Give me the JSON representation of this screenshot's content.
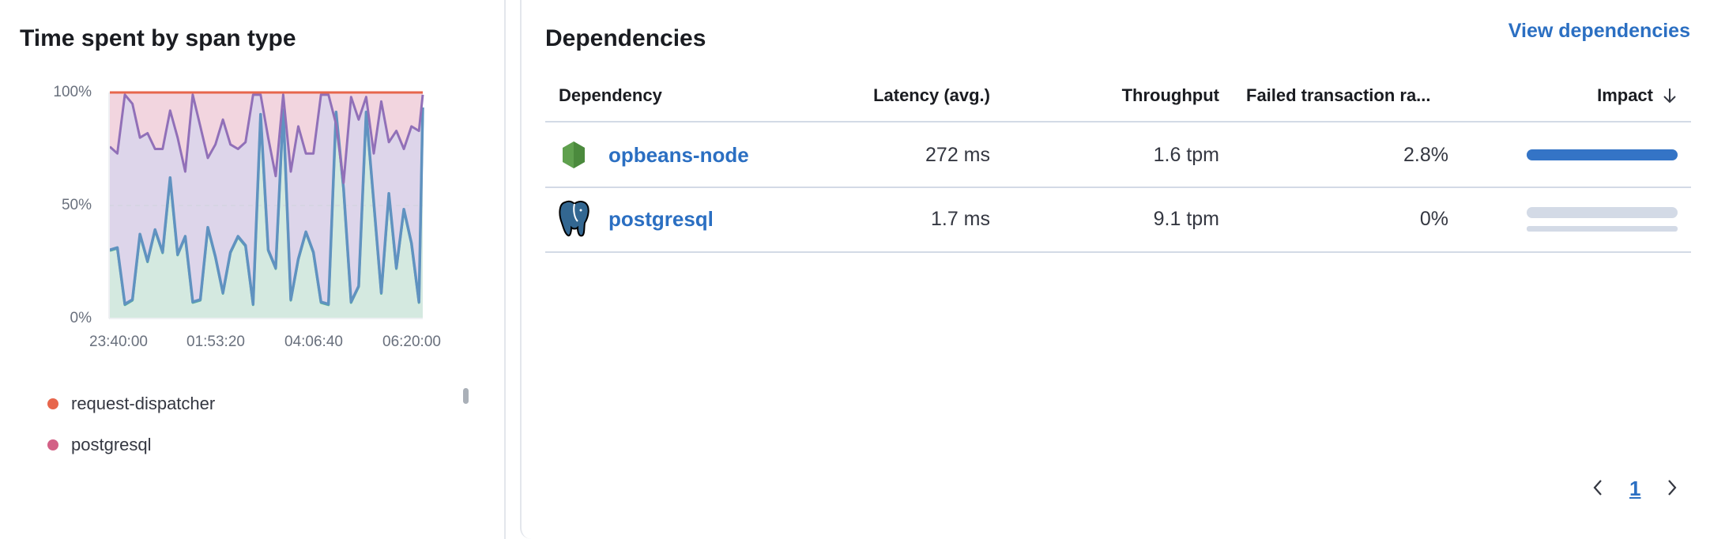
{
  "left_panel": {
    "title": "Time spent by span type",
    "legend": [
      {
        "label": "request-dispatcher",
        "color": "#e7664c"
      },
      {
        "label": "postgresql",
        "color": "#d36086"
      }
    ]
  },
  "chart_data": {
    "type": "area",
    "stacking": "percent",
    "title": "",
    "xlabel": "",
    "ylabel": "",
    "ylim": [
      0,
      100
    ],
    "y_ticks": [
      "0%",
      "50%",
      "100%"
    ],
    "x_ticks": [
      "23:40:00",
      "01:53:20",
      "04:06:40",
      "06:20:00"
    ],
    "grid": "horizontal dashed at 50%",
    "x": [
      "23:40",
      "23:50",
      "00:00",
      "00:10",
      "00:20",
      "00:30",
      "00:40",
      "00:50",
      "01:00",
      "01:10",
      "01:20",
      "01:30",
      "01:40",
      "01:50",
      "02:00",
      "02:10",
      "02:20",
      "02:30",
      "02:40",
      "02:50",
      "03:00",
      "03:10",
      "03:20",
      "03:30",
      "03:40",
      "03:50",
      "04:00",
      "04:10",
      "04:20",
      "04:30",
      "04:40",
      "04:50",
      "05:00",
      "05:10",
      "05:20",
      "05:30",
      "05:40",
      "05:50",
      "06:00",
      "06:10",
      "06:20",
      "06:30",
      "06:35"
    ],
    "series": [
      {
        "name": "",
        "color": "#54b399",
        "line_color": "#6092c0",
        "values": [
          30,
          31,
          6,
          8,
          37,
          25,
          39,
          29,
          62,
          28,
          36,
          7,
          8,
          40,
          27,
          11,
          29,
          36,
          32,
          6,
          90,
          30,
          22,
          92,
          8,
          26,
          38,
          29,
          7,
          6,
          91,
          57,
          7,
          14,
          91,
          51,
          11,
          55,
          22,
          48,
          33,
          7,
          93
        ]
      },
      {
        "name": "",
        "color": "#9170b8",
        "values": [
          76,
          73,
          99,
          95,
          80,
          82,
          75,
          75,
          92,
          80,
          65,
          99,
          85,
          71,
          77,
          88,
          77,
          75,
          78,
          99,
          99,
          80,
          63,
          99,
          65,
          85,
          73,
          73,
          99,
          99,
          86,
          60,
          98,
          88,
          98,
          73,
          96,
          78,
          83,
          75,
          85,
          83,
          99
        ]
      },
      {
        "name": "postgresql",
        "color": "#d36086",
        "values": [
          100,
          100,
          100,
          100,
          100,
          100,
          100,
          100,
          100,
          100,
          100,
          100,
          100,
          100,
          100,
          100,
          100,
          100,
          100,
          100,
          100,
          100,
          100,
          100,
          100,
          100,
          100,
          100,
          100,
          100,
          100,
          100,
          100,
          100,
          100,
          100,
          100,
          100,
          100,
          100,
          100,
          100,
          100
        ]
      },
      {
        "name": "request-dispatcher",
        "color": "#e7664c",
        "values": [
          100,
          100,
          100,
          100,
          100,
          100,
          100,
          100,
          100,
          100,
          100,
          100,
          100,
          100,
          100,
          100,
          100,
          100,
          100,
          100,
          100,
          100,
          100,
          100,
          100,
          100,
          100,
          100,
          100,
          100,
          100,
          100,
          100,
          100,
          100,
          100,
          100,
          100,
          100,
          100,
          100,
          100,
          100
        ]
      }
    ]
  },
  "right_panel": {
    "title": "Dependencies",
    "view_link": "View dependencies",
    "columns": [
      "Dependency",
      "Latency (avg.)",
      "Throughput",
      "Failed transaction ra...",
      "Impact"
    ],
    "sort_icon": "arrow-down-icon",
    "rows": [
      {
        "name": "opbeans-node",
        "icon": "nodejs-icon",
        "latency": "272 ms",
        "throughput": "1.6 tpm",
        "failed": "2.8%",
        "impact": 100
      },
      {
        "name": "postgresql",
        "icon": "postgresql-icon",
        "latency": "1.7 ms",
        "throughput": "9.1 tpm",
        "failed": "0%",
        "impact": 0
      }
    ],
    "pagination": {
      "current": "1"
    },
    "accent": "#2b6fc2"
  }
}
